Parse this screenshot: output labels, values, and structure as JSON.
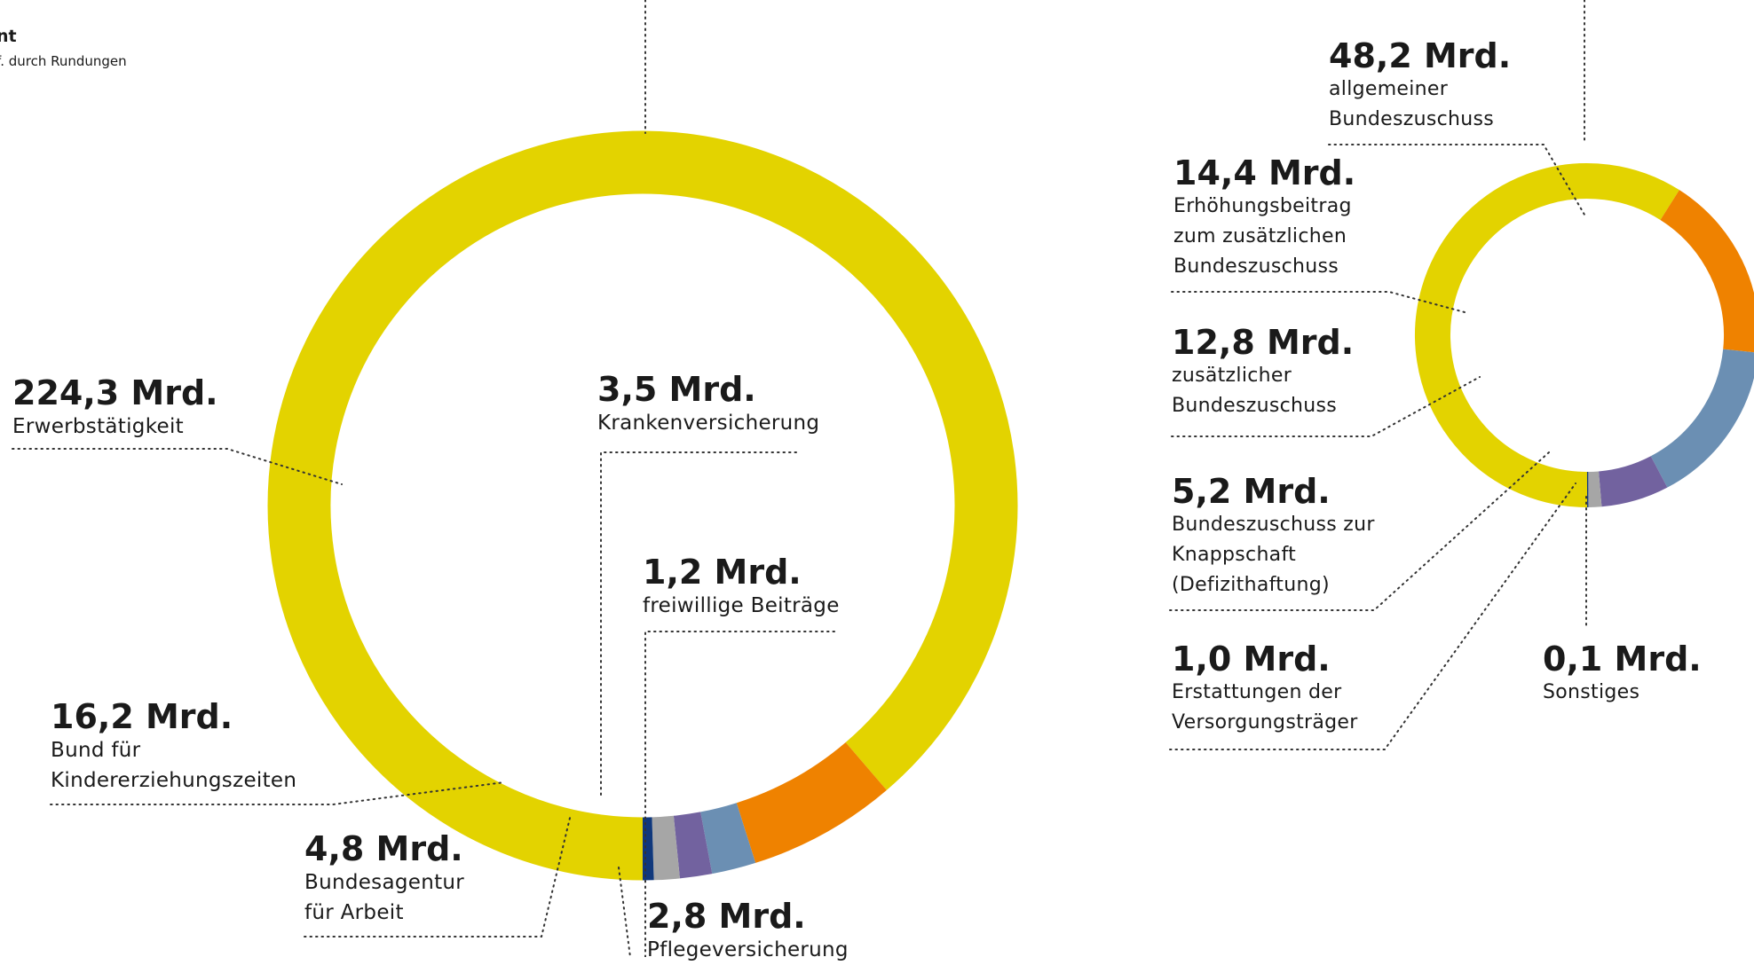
{
  "header": {
    "title": "nt",
    "note": "f. durch Rundungen"
  },
  "colors": {
    "yellow": "#e3d300",
    "orange": "#ef8200",
    "blue": "#6b8fb3",
    "purple": "#72629f",
    "grey": "#a6a6a6",
    "navy": "#10387c"
  },
  "chart_data": [
    {
      "type": "pie",
      "subtype": "donut",
      "unit": "Mrd.",
      "slices": [
        {
          "value": 224.3,
          "label": "224,3 Mrd.",
          "name": "Erwerbstätigkeit",
          "color": "#e3d300"
        },
        {
          "value": 16.2,
          "label": "16,2 Mrd.",
          "name": "Bund für\nKindererziehungszeiten",
          "color": "#ef8200"
        },
        {
          "value": 4.8,
          "label": "4,8 Mrd.",
          "name": "Bundesagentur\nfür Arbeit",
          "color": "#6b8fb3"
        },
        {
          "value": 3.5,
          "label": "3,5 Mrd.",
          "name": "Krankenversicherung",
          "color": "#72629f"
        },
        {
          "value": 2.8,
          "label": "2,8 Mrd.",
          "name": "Pflegeversicherung",
          "color": "#a6a6a6"
        },
        {
          "value": 1.2,
          "label": "1,2 Mrd.",
          "name": "freiwillige Beiträge",
          "color": "#10387c"
        }
      ]
    },
    {
      "type": "pie",
      "subtype": "donut",
      "unit": "Mrd.",
      "slices": [
        {
          "value": 48.2,
          "label": "48,2 Mrd.",
          "name": "allgemeiner\nBundeszuschuss",
          "color": "#e3d300"
        },
        {
          "value": 14.4,
          "label": "14,4 Mrd.",
          "name": "Erhöhungsbeitrag\nzum zusätzlichen\nBundeszuschuss",
          "color": "#ef8200"
        },
        {
          "value": 12.8,
          "label": "12,8 Mrd.",
          "name": "zusätzlicher\nBundeszuschuss",
          "color": "#6b8fb3"
        },
        {
          "value": 5.2,
          "label": "5,2 Mrd.",
          "name": "Bundeszuschuss zur\nKnappschaft\n(Defizithaftung)",
          "color": "#72629f"
        },
        {
          "value": 1.0,
          "label": "1,0 Mrd.",
          "name": "Erstattungen der\nVersorgungsträger",
          "color": "#a6a6a6"
        },
        {
          "value": 0.1,
          "label": "0,1 Mrd.",
          "name": "Sonstiges",
          "color": "#10387c"
        }
      ]
    }
  ]
}
